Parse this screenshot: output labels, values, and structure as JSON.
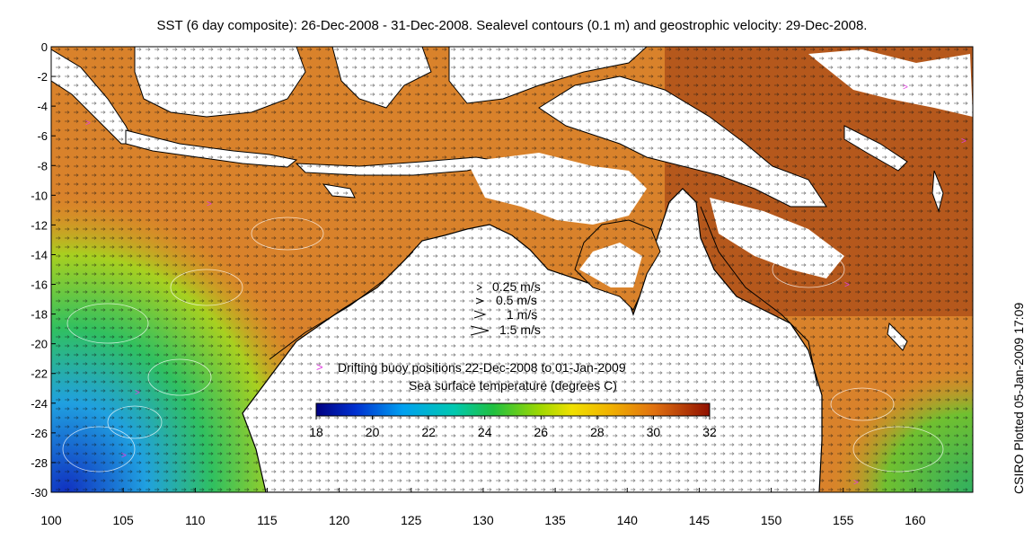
{
  "title": "SST (6 day composite): 26-Dec-2008 - 31-Dec-2008. Sealevel contours (0.1 m) and geostrophic velocity: 29-Dec-2008.",
  "side_label": "CSIRO Plotted 05-Jan-2009 17:09",
  "axes": {
    "x_ticks": [
      "100",
      "105",
      "110",
      "115",
      "120",
      "125",
      "130",
      "135",
      "140",
      "145",
      "150",
      "155",
      "160"
    ],
    "y_ticks": [
      "0",
      "-2",
      "-4",
      "-6",
      "-8",
      "-10",
      "-12",
      "-14",
      "-16",
      "-18",
      "-20",
      "-22",
      "-24",
      "-26",
      "-28",
      "-30"
    ]
  },
  "velocity_legend": [
    "0.25 m/s",
    "0.5 m/s",
    "1 m/s",
    "1.5 m/s"
  ],
  "buoy_legend": {
    "symbol": ">",
    "label": "Drifting buoy positions 22-Dec-2008 to 01-Jan-2009"
  },
  "colorbar": {
    "title": "Sea surface temperature (degrees C)",
    "ticks": [
      "18",
      "20",
      "22",
      "24",
      "26",
      "28",
      "30",
      "32"
    ],
    "colors": [
      "#000080",
      "#0040d0",
      "#0090f0",
      "#00c8d0",
      "#20c060",
      "#70d010",
      "#d8e000",
      "#f0b000",
      "#e88020",
      "#d06010",
      "#b03010",
      "#800000"
    ]
  },
  "map": {
    "lon_range": [
      100,
      164
    ],
    "lat_range": [
      -30,
      0
    ],
    "ocean_color": "#d9822b",
    "land_color": "#ffffff",
    "buoy_color": "#e040e0"
  }
}
